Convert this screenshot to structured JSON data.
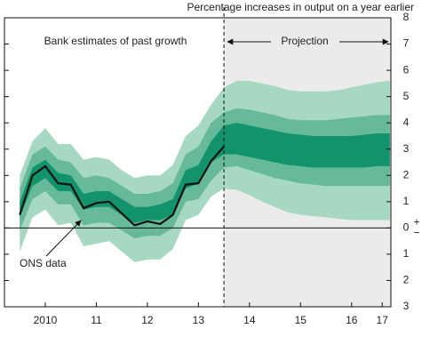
{
  "chart_data": {
    "type": "fan",
    "title": "Percentage increases in output on a year earlier",
    "annotations": {
      "past": "Bank estimates of past growth",
      "projection": "Projection",
      "ons": "ONS data"
    },
    "projection_start": 2014.0,
    "x": [
      2010.0,
      2010.25,
      2010.5,
      2010.75,
      2011.0,
      2011.25,
      2011.5,
      2011.75,
      2012.0,
      2012.25,
      2012.5,
      2012.75,
      2013.0,
      2013.25,
      2013.5,
      2013.75,
      2014.0,
      2014.25,
      2014.5,
      2014.75,
      2015.0,
      2015.25,
      2015.5,
      2015.75,
      2016.0,
      2016.25,
      2016.5,
      2016.75,
      2017.0,
      2017.25
    ],
    "series": [
      {
        "name": "ONS data",
        "color": "#111111",
        "values": [
          0.5,
          2.0,
          2.35,
          1.7,
          1.65,
          0.75,
          0.95,
          1.0,
          0.55,
          0.1,
          0.25,
          0.15,
          0.5,
          1.65,
          1.7,
          2.55,
          3.1,
          null,
          null,
          null,
          null,
          null,
          null,
          null,
          null,
          null,
          null,
          null,
          null,
          null
        ]
      }
    ],
    "fan": [
      {
        "color": "#a6d8c2",
        "upper": [
          2.0,
          3.3,
          3.8,
          3.2,
          3.2,
          2.6,
          2.7,
          2.6,
          2.2,
          1.9,
          2.0,
          2.0,
          2.4,
          3.5,
          3.9,
          4.7,
          5.35,
          5.6,
          5.6,
          5.5,
          5.4,
          5.25,
          5.2,
          5.2,
          5.2,
          5.25,
          5.35,
          5.45,
          5.55,
          5.6
        ],
        "lower": [
          -0.9,
          0.4,
          0.7,
          0.1,
          0.2,
          -0.7,
          -0.6,
          -0.5,
          -0.9,
          -1.3,
          -1.2,
          -1.2,
          -0.8,
          0.3,
          0.5,
          1.2,
          1.5,
          1.45,
          1.25,
          1.0,
          0.8,
          0.6,
          0.5,
          0.45,
          0.4,
          0.35,
          0.3,
          0.3,
          0.3,
          0.3
        ]
      },
      {
        "color": "#66b999",
        "upper": [
          1.5,
          2.8,
          3.1,
          2.6,
          2.5,
          1.9,
          2.0,
          1.9,
          1.6,
          1.3,
          1.3,
          1.4,
          1.7,
          2.8,
          3.1,
          4.0,
          4.4,
          4.55,
          4.5,
          4.4,
          4.3,
          4.15,
          4.1,
          4.1,
          4.1,
          4.15,
          4.2,
          4.25,
          4.3,
          4.3
        ],
        "lower": [
          -0.1,
          1.1,
          1.4,
          0.9,
          0.9,
          0.1,
          0.2,
          0.2,
          -0.1,
          -0.4,
          -0.3,
          -0.3,
          0.0,
          1.0,
          1.1,
          1.8,
          2.3,
          2.35,
          2.2,
          2.05,
          1.9,
          1.8,
          1.7,
          1.65,
          1.6,
          1.6,
          1.6,
          1.6,
          1.6,
          1.6
        ]
      },
      {
        "color": "#12936c",
        "upper": [
          1.0,
          2.3,
          2.6,
          2.1,
          2.0,
          1.3,
          1.4,
          1.4,
          1.1,
          0.8,
          0.8,
          0.9,
          1.1,
          2.2,
          2.4,
          3.3,
          3.9,
          4.0,
          3.9,
          3.8,
          3.7,
          3.6,
          3.55,
          3.5,
          3.5,
          3.5,
          3.5,
          3.55,
          3.6,
          3.6
        ],
        "lower": [
          0.4,
          1.6,
          1.9,
          1.4,
          1.4,
          0.7,
          0.8,
          0.8,
          0.5,
          0.2,
          0.3,
          0.3,
          0.5,
          1.5,
          1.7,
          2.5,
          2.8,
          2.8,
          2.7,
          2.6,
          2.5,
          2.4,
          2.35,
          2.3,
          2.3,
          2.3,
          2.3,
          2.3,
          2.35,
          2.35
        ]
      }
    ],
    "xlim": [
      2009.7,
      2017.27
    ],
    "xticks": [
      {
        "value": 2010.5,
        "label": "2010"
      },
      {
        "value": 2011.5,
        "label": "11"
      },
      {
        "value": 2012.5,
        "label": "12"
      },
      {
        "value": 2013.5,
        "label": "13"
      },
      {
        "value": 2014.5,
        "label": "14"
      },
      {
        "value": 2015.5,
        "label": "15"
      },
      {
        "value": 2016.5,
        "label": "16"
      },
      {
        "value": 2017.1,
        "label": "17"
      }
    ],
    "ylim": [
      -3,
      8
    ],
    "yticks": [
      {
        "value": -3,
        "label": "3"
      },
      {
        "value": -2,
        "label": "2"
      },
      {
        "value": -1,
        "label": "1"
      },
      0,
      1,
      2,
      3,
      4,
      5,
      6,
      7,
      8
    ],
    "y_sign_labels": [
      "+",
      "−"
    ],
    "projection_color": "#ebebeb"
  }
}
